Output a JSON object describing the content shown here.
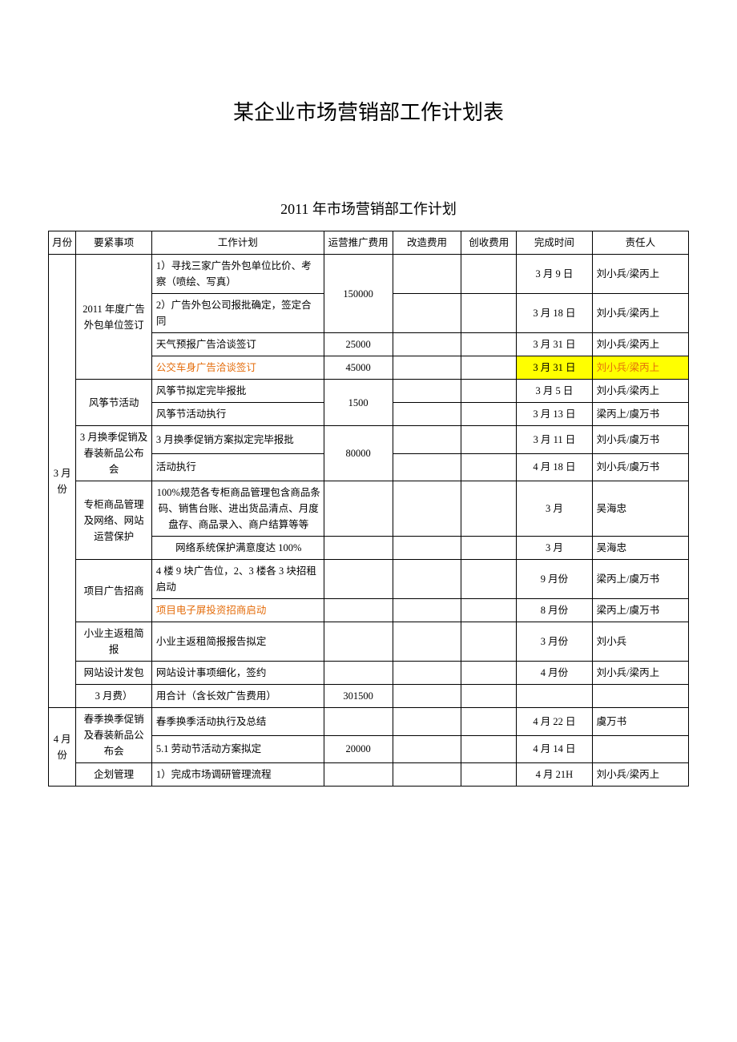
{
  "titles": {
    "main": "某企业市场营销部工作计划表",
    "sub": "2011 年市场营销部工作计划"
  },
  "headers": {
    "month": "月份",
    "item": "要紧事项",
    "plan": "工作计划",
    "cost1": "运营推广费用",
    "cost2": "改造费用",
    "cost3": "创收费用",
    "date": "完成时间",
    "owner": "责任人"
  },
  "months": {
    "mar": "3 月份",
    "apr": "4 月份"
  },
  "items": {
    "ad_outsourcing": "2011 年度广告外包单位签订",
    "kite": "风筝节活动",
    "mar_promo": "3 月换季促销及春装新品公布会",
    "counter": "专柜商品管理及网络、网站运营保护",
    "project_ad": "项目广告招商",
    "owner_rebate": "小业主返租简报",
    "website": "网站设计发包",
    "mar_fee": "3 月费）",
    "spring_promo": "春季换季促销及春装新品公布会",
    "planning": "企划管理"
  },
  "plans": {
    "p1": "1）寻找三家广告外包单位比价、考察（喷绘、写真）",
    "p2": "2）广告外包公司报批确定，签定合同",
    "p3": "天气预报广告洽谈签订",
    "p4": "公交车身广告洽谈签订",
    "p5": "风筝节拟定完毕报批",
    "p6": "风筝节活动执行",
    "p7": "3 月换季促销方案拟定完毕报批",
    "p8": "活动执行",
    "p9": "100%规范各专柜商品管理包含商品条码、销售台账、进出货品清点、月度盘存、商品录入、商户结算等等",
    "p10": "网络系统保护满意度达 100%",
    "p11": "4 楼 9 块广告位，2、3 楼各 3 块招租启动",
    "p12": "项目电子屏投资招商启动",
    "p13": "小业主返租简报报告拟定",
    "p14": "网站设计事项细化，签约",
    "p15": "用合计（含长效广告费用）",
    "p16": "春季换季活动执行及总结",
    "p17": "5.1 劳动节活动方案拟定",
    "p18": "1）完成市场调研管理流程"
  },
  "costs": {
    "c150000": "150000",
    "c25000": "25000",
    "c45000": "45000",
    "c1500": "1500",
    "c80000": "80000",
    "c301500": "301500",
    "c20000": "20000"
  },
  "dates": {
    "d_mar9": "3 月 9 日",
    "d_mar18": "3 月 18 日",
    "d_mar31a": "3 月 31 日",
    "d_mar31b": "3 月 31 日",
    "d_mar5": "3 月 5 日",
    "d_mar13": "3 月 13 日",
    "d_mar11": "3 月 11 日",
    "d_apr18": "4 月 18 日",
    "d_mar": "3 月",
    "d_mar_b": "3 月",
    "d_sep": "9 月份",
    "d_aug": "8 月份",
    "d_mar_c": "3 月份",
    "d_apr": "4 月份",
    "d_apr22": "4 月 22 日",
    "d_apr14": "4 月 14 日",
    "d_apr21h": "4 月 21H"
  },
  "owners": {
    "o1": "刘小兵/梁丙上",
    "o2": "刘小兵/梁丙上",
    "o3": "刘小兵/梁丙上",
    "o4": "刘小兵/梁丙上",
    "o5": "刘小兵/梁丙上",
    "o6": "梁丙上/虞万书",
    "o7": "刘小兵/虞万书",
    "o8": "刘小兵/虞万书",
    "o9": "吴海忠",
    "o10": "吴海忠",
    "o11": "梁丙上/虞万书",
    "o12": "梁丙上/虞万书",
    "o13": "刘小兵",
    "o14": "刘小兵/梁丙上",
    "o15": "虞万书",
    "o16": "刘小兵/梁丙上"
  },
  "colors": {
    "highlight": "#ffff00",
    "orange": "#e46c0a",
    "border": "#000000",
    "bg": "#ffffff",
    "text": "#000000"
  }
}
